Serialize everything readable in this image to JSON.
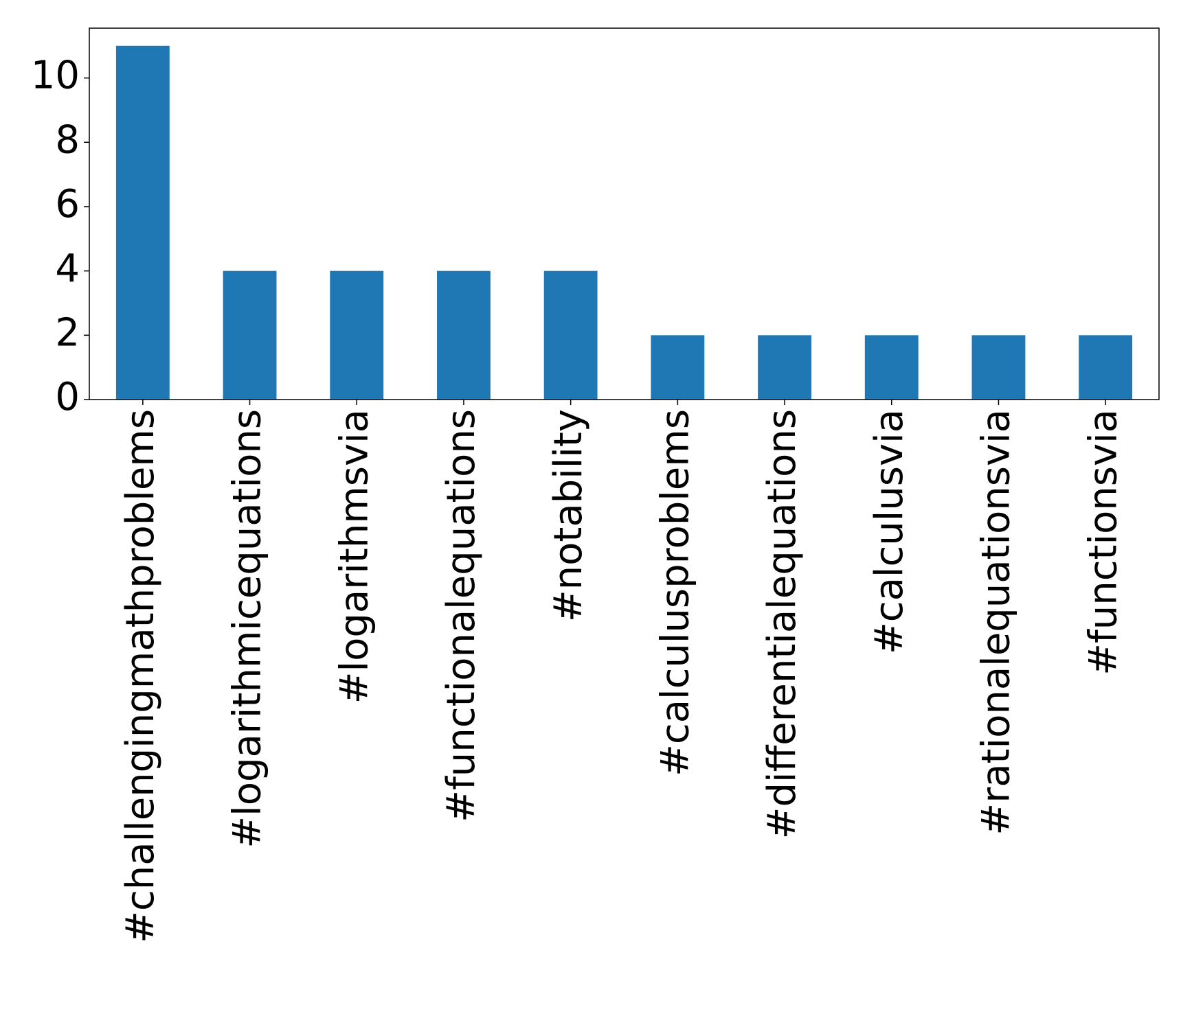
{
  "chart_data": {
    "type": "bar",
    "categories": [
      "#challengingmathproblems",
      "#logarithmicequations",
      "#logarithmsvia",
      "#functionalequations",
      "#notability",
      "#calculusproblems",
      "#differentialequations",
      "#calculusvia",
      "#rationalequationsvia",
      "#functionsvia"
    ],
    "values": [
      11,
      4,
      4,
      4,
      4,
      2,
      2,
      2,
      2,
      2
    ],
    "color": "#1f77b4",
    "ylim": [
      0,
      11.55
    ],
    "yticks": [
      0,
      2,
      4,
      6,
      8,
      10
    ],
    "grid": false
  }
}
